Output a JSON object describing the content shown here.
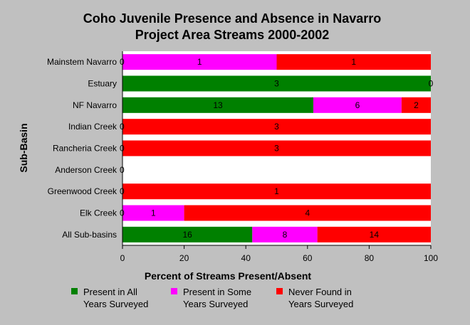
{
  "chart_data": {
    "type": "bar",
    "orientation": "horizontal",
    "stacked": true,
    "title_lines": [
      "Coho Juvenile Presence and Absence in Navarro",
      "Project Area Streams 2000-2002"
    ],
    "xlabel": "Percent of Streams Present/Absent",
    "ylabel": "Sub-Basin",
    "xlim": [
      0,
      100
    ],
    "x_ticks": [
      0,
      20,
      40,
      60,
      80,
      100
    ],
    "grid": false,
    "legend_position": "bottom",
    "categories": [
      "Mainstem Navarro",
      "Estuary",
      "NF Navarro",
      "Indian Creek",
      "Rancheria Creek",
      "Anderson Creek",
      "Greenwood Creek",
      "Elk Creek",
      "All Sub-basins"
    ],
    "series": [
      {
        "name": "Present in All Years Surveyed",
        "legend_lines": [
          "Present in All",
          "Years Surveyed"
        ],
        "color": "#008000",
        "counts": [
          0,
          3,
          13,
          0,
          0,
          0,
          0,
          0,
          16
        ],
        "percents": [
          0,
          100,
          61.9,
          0,
          0,
          0,
          0,
          0,
          42.1
        ]
      },
      {
        "name": "Present in Some Years Surveyed",
        "legend_lines": [
          "Present in Some",
          "Years Surveyed"
        ],
        "color": "#ff00ff",
        "counts": [
          1,
          0,
          6,
          0,
          0,
          0,
          0,
          1,
          8
        ],
        "percents": [
          50,
          0,
          28.6,
          0,
          0,
          0,
          0,
          20,
          21.1
        ]
      },
      {
        "name": "Never Found in Years Surveyed",
        "legend_lines": [
          "Never Found in",
          "Years Surveyed"
        ],
        "color": "#ff0000",
        "counts": [
          1,
          0,
          2,
          3,
          3,
          0,
          1,
          4,
          14
        ],
        "percents": [
          50,
          0,
          9.5,
          100,
          100,
          0,
          100,
          80,
          36.8
        ]
      }
    ],
    "row_annotations": [
      {
        "category": "Mainstem Navarro",
        "left": "0",
        "right": ""
      },
      {
        "category": "Estuary",
        "left": "",
        "right": "0"
      },
      {
        "category": "NF Navarro",
        "left": "",
        "right": ""
      },
      {
        "category": "Indian Creek",
        "left": "0",
        "right": ""
      },
      {
        "category": "Rancheria Creek",
        "left": "0",
        "right": ""
      },
      {
        "category": "Anderson Creek",
        "left": "0",
        "right": ""
      },
      {
        "category": "Greenwood Creek",
        "left": "0",
        "right": ""
      },
      {
        "category": "Elk Creek",
        "left": "0",
        "right": ""
      },
      {
        "category": "All Sub-basins",
        "left": "",
        "right": ""
      }
    ],
    "colors": {
      "background": "#c0c0c0",
      "plot_background": "#ffffff",
      "axis": "#000000"
    }
  }
}
